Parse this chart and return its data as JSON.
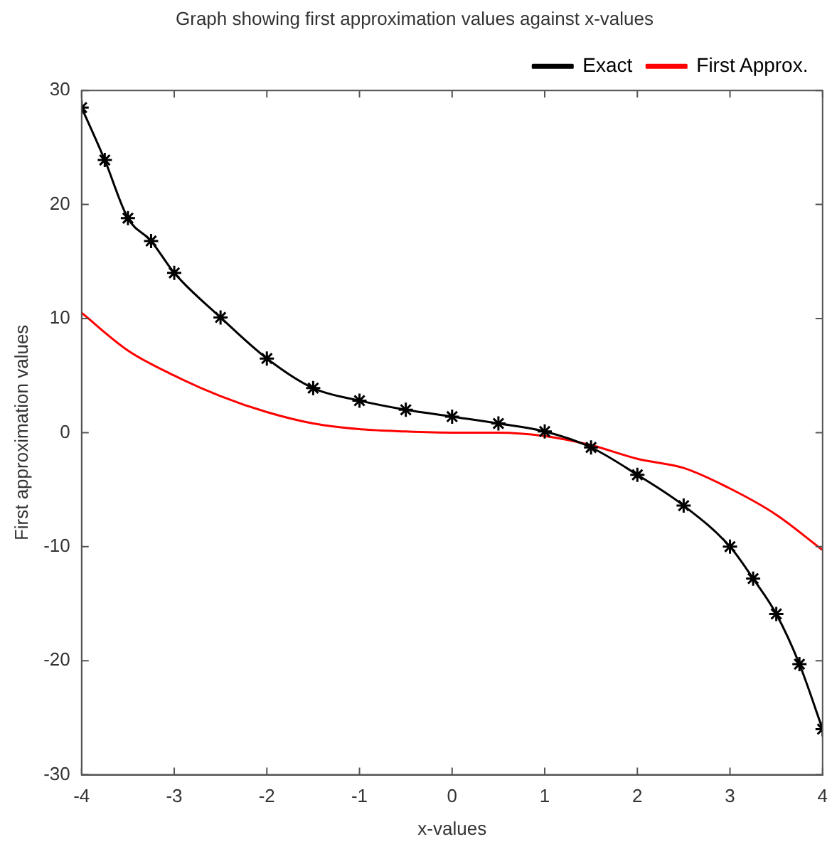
{
  "chart_data": {
    "type": "line",
    "title": "Graph showing first approximation values against x-values",
    "xlabel": "x-values",
    "ylabel": "First approximation values",
    "xlim": [
      -4,
      4
    ],
    "xticks": [
      -4,
      -3,
      -2,
      -1,
      0,
      1,
      2,
      3,
      4
    ],
    "ylim": [
      -30,
      30
    ],
    "yticks": [
      -30,
      -20,
      -10,
      0,
      10,
      20,
      30
    ],
    "grid": false,
    "legend": "top right",
    "series": [
      {
        "name": "Exact",
        "color": "#000000",
        "marker": "cross",
        "x": [
          -4,
          -3.75,
          -3.5,
          -3.25,
          -3,
          -2.5,
          -2,
          -1.5,
          -1,
          -0.5,
          0,
          0.5,
          1,
          1.5,
          2,
          2.5,
          3,
          3.25,
          3.5,
          3.75,
          4
        ],
        "values": [
          28.5,
          23.9,
          18.8,
          16.8,
          14,
          10.1,
          6.5,
          3.9,
          2.8,
          2.0,
          1.4,
          0.8,
          0.1,
          -1.3,
          -3.7,
          -6.4,
          -10,
          -12.8,
          -15.9,
          -20.3,
          -26
        ]
      },
      {
        "name": "First Approx.",
        "color": "#ff0000",
        "marker": "none",
        "x": [
          -4,
          -3.5,
          -3,
          -2.5,
          -2,
          -1.5,
          -1,
          -0.5,
          0,
          0.5,
          1,
          1.5,
          2,
          2.5,
          3,
          3.5,
          4
        ],
        "values": [
          10.5,
          7.2,
          5.0,
          3.2,
          1.8,
          0.8,
          0.3,
          0.1,
          0,
          0,
          -0.3,
          -1.1,
          -2.3,
          -3.1,
          -4.9,
          -7.2,
          -10.3
        ]
      }
    ]
  }
}
